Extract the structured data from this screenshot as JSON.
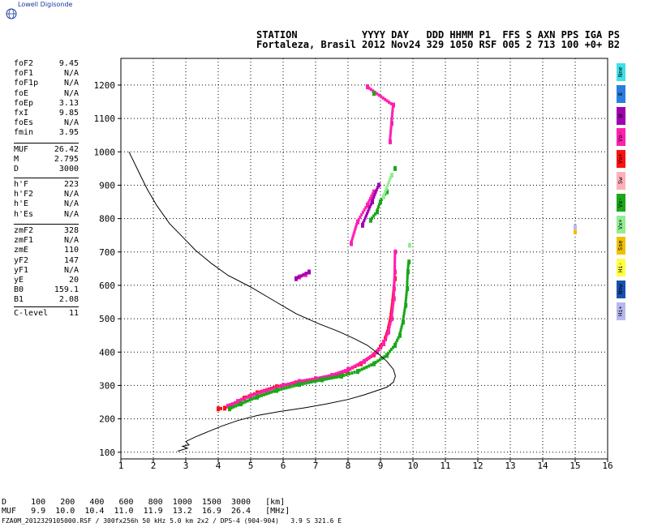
{
  "logo": {
    "text": "Lowell Digisonde"
  },
  "header": {
    "line1": "STATION           YYYY DAY   DDD HHMM P1  FFS S AXN PPS IGA PS",
    "line2": "Fortaleza, Brasil 2012 Nov24 329 1050 RSF 005 2 713 100 +0+ B2"
  },
  "params_group1": [
    {
      "k": "foF2",
      "v": "9.45"
    },
    {
      "k": "foF1",
      "v": "N/A"
    },
    {
      "k": "foF1p",
      "v": "N/A"
    },
    {
      "k": "foE",
      "v": "N/A"
    },
    {
      "k": "foEp",
      "v": "3.13"
    },
    {
      "k": "fxI",
      "v": "9.85"
    },
    {
      "k": "foEs",
      "v": "N/A"
    },
    {
      "k": "fmin",
      "v": "3.95"
    }
  ],
  "params_group2": [
    {
      "k": "MUF",
      "v": "26.42"
    },
    {
      "k": "M",
      "v": "2.795"
    },
    {
      "k": "D",
      "v": "3000"
    }
  ],
  "params_group3": [
    {
      "k": "h'F",
      "v": "223"
    },
    {
      "k": "h'F2",
      "v": "N/A"
    },
    {
      "k": "h'E",
      "v": "N/A"
    },
    {
      "k": "h'Es",
      "v": "N/A"
    }
  ],
  "params_group4": [
    {
      "k": "zmF2",
      "v": "328"
    },
    {
      "k": "zmF1",
      "v": "N/A"
    },
    {
      "k": "zmE",
      "v": "110"
    },
    {
      "k": "yF2",
      "v": "147"
    },
    {
      "k": "yF1",
      "v": "N/A"
    },
    {
      "k": "yE",
      "v": "20"
    },
    {
      "k": "B0",
      "v": "159.1"
    },
    {
      "k": "B1",
      "v": "2.08"
    }
  ],
  "clevel": {
    "k": "C-level",
    "v": "11"
  },
  "legend": [
    {
      "label": "Nne",
      "color": "#40e0e8"
    },
    {
      "label": "E",
      "color": "#2a7de0"
    },
    {
      "label": "W",
      "color": "#a000b0"
    },
    {
      "label": "Vo-",
      "color": "#ff20b0"
    },
    {
      "label": "Vo+",
      "color": "#ff1010"
    },
    {
      "label": "Sw",
      "color": "#ffb0b8"
    },
    {
      "label": "Vx-",
      "color": "#18a818"
    },
    {
      "label": "Vx+",
      "color": "#90ee90"
    },
    {
      "label": "Sse",
      "color": "#f0c000"
    },
    {
      "label": "Hi-",
      "color": "#ffff40"
    },
    {
      "label": "Nnw",
      "color": "#1850b0"
    },
    {
      "label": "Hi+",
      "color": "#b8b8f0"
    }
  ],
  "bottom": {
    "row1": "D     100   200   400   600   800  1000  1500  3000   [km]",
    "row2": "MUF   9.9  10.0  10.4  11.0  11.9  13.2  16.9  26.4   [MHz]",
    "footer": "FZA0M_2012329105000.RSF / 300fx256h 50 kHz 5.0 km 2x2 / DPS-4 (904-904)   3.9 S 321.6 E"
  },
  "chart_data": {
    "type": "scatter",
    "xlim": [
      1,
      16
    ],
    "ylim": [
      80,
      1280
    ],
    "x_ticks": [
      1,
      2,
      3,
      4,
      5,
      6,
      7,
      8,
      9,
      10,
      11,
      12,
      13,
      14,
      15,
      16
    ],
    "y_ticks": [
      100,
      200,
      300,
      400,
      500,
      600,
      700,
      800,
      900,
      1000,
      1100,
      1200
    ],
    "grid": true,
    "series": [
      {
        "color": "#ff1010",
        "colorKey": "Vo+",
        "points": [
          [
            4.0,
            230
          ],
          [
            4.2,
            232
          ],
          [
            4.4,
            240
          ],
          [
            4.8,
            262
          ],
          [
            5.2,
            278
          ],
          [
            5.8,
            296
          ],
          [
            6.4,
            308
          ],
          [
            7.0,
            318
          ],
          [
            7.6,
            330
          ],
          [
            8.0,
            345
          ],
          [
            8.4,
            365
          ],
          [
            8.8,
            392
          ],
          [
            9.0,
            415
          ],
          [
            9.15,
            440
          ],
          [
            9.25,
            470
          ],
          [
            9.33,
            510
          ],
          [
            9.38,
            550
          ],
          [
            9.42,
            590
          ],
          [
            9.45,
            620
          ]
        ]
      },
      {
        "color": "#ff20b0",
        "colorKey": "Vo-",
        "points": [
          [
            4.3,
            238
          ],
          [
            4.6,
            252
          ],
          [
            5.0,
            268
          ],
          [
            5.5,
            285
          ],
          [
            6.0,
            300
          ],
          [
            6.5,
            312
          ],
          [
            7.0,
            320
          ],
          [
            7.5,
            330
          ],
          [
            8.0,
            347
          ],
          [
            8.5,
            372
          ],
          [
            8.9,
            400
          ],
          [
            9.1,
            425
          ],
          [
            9.25,
            460
          ],
          [
            9.35,
            500
          ],
          [
            9.42,
            560
          ],
          [
            9.45,
            640
          ],
          [
            9.46,
            700
          ],
          [
            8.6,
            1195
          ],
          [
            9.4,
            1140
          ],
          [
            9.35,
            1085
          ],
          [
            9.3,
            1030
          ],
          [
            8.8,
            880
          ],
          [
            8.6,
            840
          ],
          [
            8.3,
            790
          ],
          [
            8.1,
            725
          ],
          [
            6.7,
            632
          ],
          [
            6.5,
            625
          ]
        ]
      },
      {
        "color": "#a000b0",
        "colorKey": "W",
        "points": [
          [
            8.95,
            900
          ],
          [
            8.75,
            850
          ],
          [
            8.45,
            780
          ],
          [
            6.4,
            620
          ],
          [
            6.8,
            640
          ]
        ]
      },
      {
        "color": "#18a818",
        "colorKey": "Vx-",
        "points": [
          [
            4.35,
            230
          ],
          [
            4.7,
            245
          ],
          [
            5.2,
            265
          ],
          [
            5.8,
            285
          ],
          [
            6.5,
            303
          ],
          [
            7.2,
            317
          ],
          [
            7.8,
            328
          ],
          [
            8.3,
            342
          ],
          [
            8.8,
            365
          ],
          [
            9.2,
            390
          ],
          [
            9.45,
            420
          ],
          [
            9.6,
            450
          ],
          [
            9.7,
            490
          ],
          [
            9.78,
            540
          ],
          [
            9.83,
            590
          ],
          [
            9.85,
            640
          ],
          [
            9.88,
            670
          ],
          [
            9.2,
            880
          ],
          [
            9.0,
            850
          ],
          [
            8.9,
            820
          ],
          [
            8.7,
            795
          ],
          [
            8.8,
            1175
          ],
          [
            9.45,
            950
          ]
        ]
      },
      {
        "color": "#90ee90",
        "colorKey": "Vx+",
        "points": [
          [
            9.9,
            720
          ],
          [
            9.35,
            930
          ],
          [
            9.1,
            865
          ]
        ]
      },
      {
        "color": "#f0c000",
        "colorKey": "Sse",
        "points": [
          [
            15.0,
            760
          ]
        ]
      },
      {
        "color": "#b8b8f0",
        "colorKey": "Hi+",
        "points": [
          [
            15.0,
            775
          ]
        ]
      }
    ],
    "profile_line": [
      [
        1.25,
        1000
      ],
      [
        1.5,
        950
      ],
      [
        1.8,
        890
      ],
      [
        2.1,
        840
      ],
      [
        2.5,
        785
      ],
      [
        2.9,
        745
      ],
      [
        3.3,
        705
      ],
      [
        3.8,
        665
      ],
      [
        4.3,
        630
      ],
      [
        5.0,
        595
      ],
      [
        5.7,
        555
      ],
      [
        6.4,
        515
      ],
      [
        7.1,
        485
      ],
      [
        7.7,
        462
      ],
      [
        8.2,
        440
      ],
      [
        8.6,
        420
      ],
      [
        8.9,
        398
      ],
      [
        9.2,
        372
      ],
      [
        9.4,
        348
      ],
      [
        9.46,
        328
      ],
      [
        9.4,
        310
      ],
      [
        9.2,
        295
      ],
      [
        8.9,
        285
      ],
      [
        8.5,
        272
      ],
      [
        8.0,
        258
      ],
      [
        7.3,
        244
      ],
      [
        6.6,
        232
      ],
      [
        5.9,
        222
      ],
      [
        5.2,
        210
      ],
      [
        4.6,
        195
      ],
      [
        4.1,
        178
      ],
      [
        3.7,
        162
      ],
      [
        3.3,
        146
      ],
      [
        3.0,
        132
      ],
      [
        3.1,
        122
      ],
      [
        2.9,
        118
      ],
      [
        3.05,
        112
      ],
      [
        2.75,
        103
      ]
    ]
  }
}
